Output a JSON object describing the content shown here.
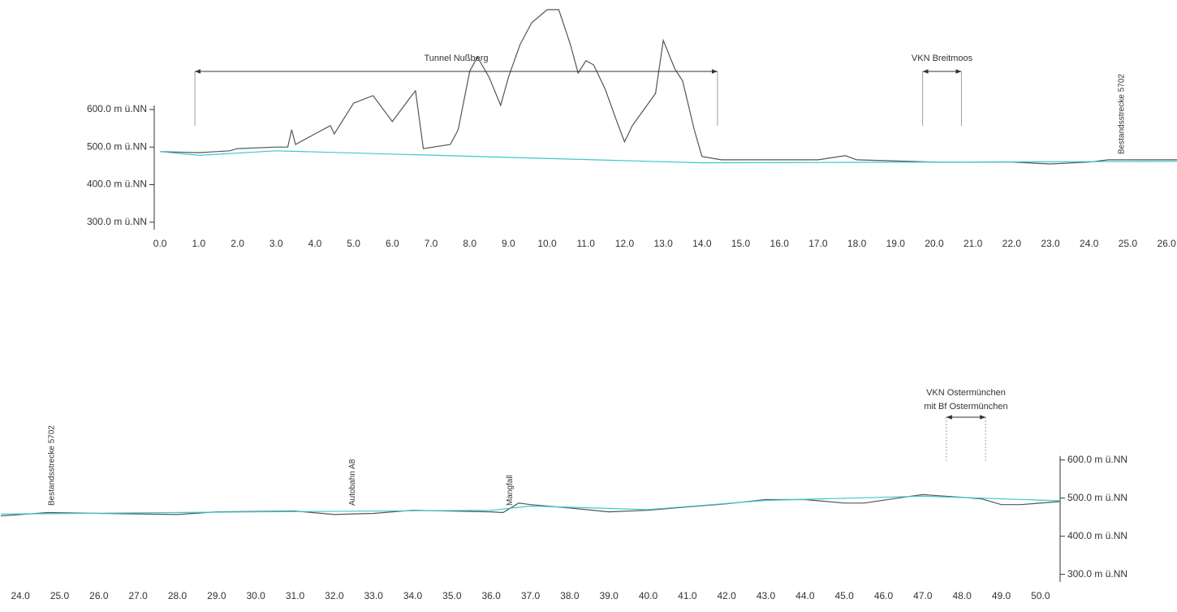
{
  "chart_data": [
    {
      "type": "line",
      "yaxis_side": "left",
      "xlim": [
        -0.15,
        26.27
      ],
      "ylim": [
        280,
        870
      ],
      "yticks": [
        {
          "value": 300,
          "label": "300.0 m ü.NN"
        },
        {
          "value": 400,
          "label": "400.0 m ü.NN"
        },
        {
          "value": 500,
          "label": "500.0 m ü.NN"
        },
        {
          "value": 600,
          "label": "600.0 m ü.NN"
        }
      ],
      "xticks": [
        {
          "value": 0,
          "label": "0.0"
        },
        {
          "value": 1,
          "label": "1.0"
        },
        {
          "value": 2,
          "label": "2.0"
        },
        {
          "value": 3,
          "label": "3.0"
        },
        {
          "value": 4,
          "label": "4.0"
        },
        {
          "value": 5,
          "label": "5.0"
        },
        {
          "value": 6,
          "label": "6.0"
        },
        {
          "value": 7,
          "label": "7.0"
        },
        {
          "value": 8,
          "label": "8.0"
        },
        {
          "value": 9,
          "label": "9.0"
        },
        {
          "value": 10,
          "label": "10.0"
        },
        {
          "value": 11,
          "label": "11.0"
        },
        {
          "value": 12,
          "label": "12.0"
        },
        {
          "value": 13,
          "label": "13.0"
        },
        {
          "value": 14,
          "label": "14.0"
        },
        {
          "value": 15,
          "label": "15.0"
        },
        {
          "value": 16,
          "label": "16.0"
        },
        {
          "value": 17,
          "label": "17.0"
        },
        {
          "value": 18,
          "label": "18.0"
        },
        {
          "value": 19,
          "label": "19.0"
        },
        {
          "value": 20,
          "label": "20.0"
        },
        {
          "value": 21,
          "label": "21.0"
        },
        {
          "value": 22,
          "label": "22.0"
        },
        {
          "value": 23,
          "label": "23.0"
        },
        {
          "value": 24,
          "label": "24.0"
        },
        {
          "value": 25,
          "label": "25.0"
        },
        {
          "value": 26,
          "label": "26.0"
        }
      ],
      "series": [
        {
          "color": "#555555",
          "x": [
            0,
            1,
            1.8,
            2,
            3,
            3.3,
            3.4,
            3.5,
            4,
            4.4,
            4.5,
            5,
            5.5,
            6,
            6.5,
            6.6,
            6.8,
            7.5,
            7.7,
            8,
            8.2,
            8.5,
            8.8,
            9,
            9.3,
            9.6,
            10,
            10.3,
            10.6,
            10.8,
            11,
            11.2,
            11.5,
            11.8,
            12,
            12.2,
            12.5,
            12.8,
            13,
            13.3,
            13.5,
            13.8,
            14,
            14.5,
            17,
            17.7,
            18,
            20,
            22,
            23,
            24,
            24.5,
            26.27
          ],
          "values": [
            488,
            485,
            490,
            496,
            500,
            500,
            546,
            507,
            535,
            557,
            535,
            617,
            637,
            568,
            637,
            650,
            496,
            507,
            546,
            702,
            740,
            686,
            611,
            686,
            773,
            831,
            866,
            866,
            773,
            697,
            730,
            719,
            654,
            568,
            514,
            557,
            600,
            643,
            784,
            708,
            676,
            546,
            475,
            466,
            466,
            477,
            466,
            460,
            460,
            455,
            460,
            466,
            466
          ]
        },
        {
          "color": "#3cc8d0",
          "x": [
            0,
            1,
            3,
            14,
            26.27
          ],
          "values": [
            488,
            478,
            490,
            458,
            462
          ]
        }
      ],
      "annotations": [
        {
          "text": "Tunnel Nußberg",
          "from": 0.9,
          "to": 14.4
        },
        {
          "text": "VKN Breitmoos",
          "from": 19.7,
          "to": 20.7
        },
        {
          "text": "Bestandsstrecke 5702",
          "at": 24.76
        }
      ]
    },
    {
      "type": "line",
      "yaxis_side": "right",
      "xlim": [
        23.5,
        50.5
      ],
      "ylim": [
        280,
        610
      ],
      "yticks": [
        {
          "value": 300,
          "label": "300.0 m ü.NN"
        },
        {
          "value": 400,
          "label": "400.0 m ü.NN"
        },
        {
          "value": 500,
          "label": "500.0 m ü.NN"
        },
        {
          "value": 600,
          "label": "600.0 m ü.NN"
        }
      ],
      "xticks": [
        {
          "value": 24,
          "label": "24.0"
        },
        {
          "value": 25,
          "label": "25.0"
        },
        {
          "value": 26,
          "label": "26.0"
        },
        {
          "value": 27,
          "label": "27.0"
        },
        {
          "value": 28,
          "label": "28.0"
        },
        {
          "value": 29,
          "label": "29.0"
        },
        {
          "value": 30,
          "label": "30.0"
        },
        {
          "value": 31,
          "label": "31.0"
        },
        {
          "value": 32,
          "label": "32.0"
        },
        {
          "value": 33,
          "label": "33.0"
        },
        {
          "value": 34,
          "label": "34.0"
        },
        {
          "value": 35,
          "label": "35.0"
        },
        {
          "value": 36,
          "label": "36.0"
        },
        {
          "value": 37,
          "label": "37.0"
        },
        {
          "value": 38,
          "label": "38.0"
        },
        {
          "value": 39,
          "label": "39.0"
        },
        {
          "value": 40,
          "label": "40.0"
        },
        {
          "value": 41,
          "label": "41.0"
        },
        {
          "value": 42,
          "label": "42.0"
        },
        {
          "value": 43,
          "label": "43.0"
        },
        {
          "value": 44,
          "label": "44.0"
        },
        {
          "value": 45,
          "label": "45.0"
        },
        {
          "value": 46,
          "label": "46.0"
        },
        {
          "value": 47,
          "label": "47.0"
        },
        {
          "value": 48,
          "label": "48.0"
        },
        {
          "value": 49,
          "label": "49.0"
        },
        {
          "value": 50,
          "label": "50.0"
        }
      ],
      "series": [
        {
          "color": "#555555",
          "x": [
            23.5,
            24.7,
            26,
            28,
            29,
            31,
            32,
            33,
            34,
            36,
            36.3,
            36.7,
            37,
            38,
            39,
            40,
            41,
            42,
            43,
            44,
            45,
            45.5,
            46.5,
            47,
            48,
            48.5,
            49,
            49.5,
            50.5
          ],
          "values": [
            453,
            462,
            460,
            457,
            464,
            466,
            457,
            460,
            468,
            464,
            462,
            487,
            483,
            474,
            464,
            468,
            477,
            485,
            496,
            496,
            487,
            487,
            502,
            509,
            502,
            498,
            483,
            483,
            491
          ]
        },
        {
          "color": "#3cc8d0",
          "x": [
            23.5,
            30,
            36,
            37,
            40,
            43,
            47,
            50.5
          ],
          "values": [
            458,
            464,
            468,
            479,
            470,
            494,
            505,
            493
          ]
        }
      ],
      "annotations": [
        {
          "text": "Bestandsstrecke 5702",
          "at": 24.72
        },
        {
          "text": "Autobahn A8",
          "at": 32.38
        },
        {
          "text": "Mangfall",
          "at": 36.4
        },
        {
          "text": [
            "VKN Ostermünchen",
            "mit Bf Ostermünchen"
          ],
          "from": 47.6,
          "to": 48.6
        }
      ]
    }
  ]
}
